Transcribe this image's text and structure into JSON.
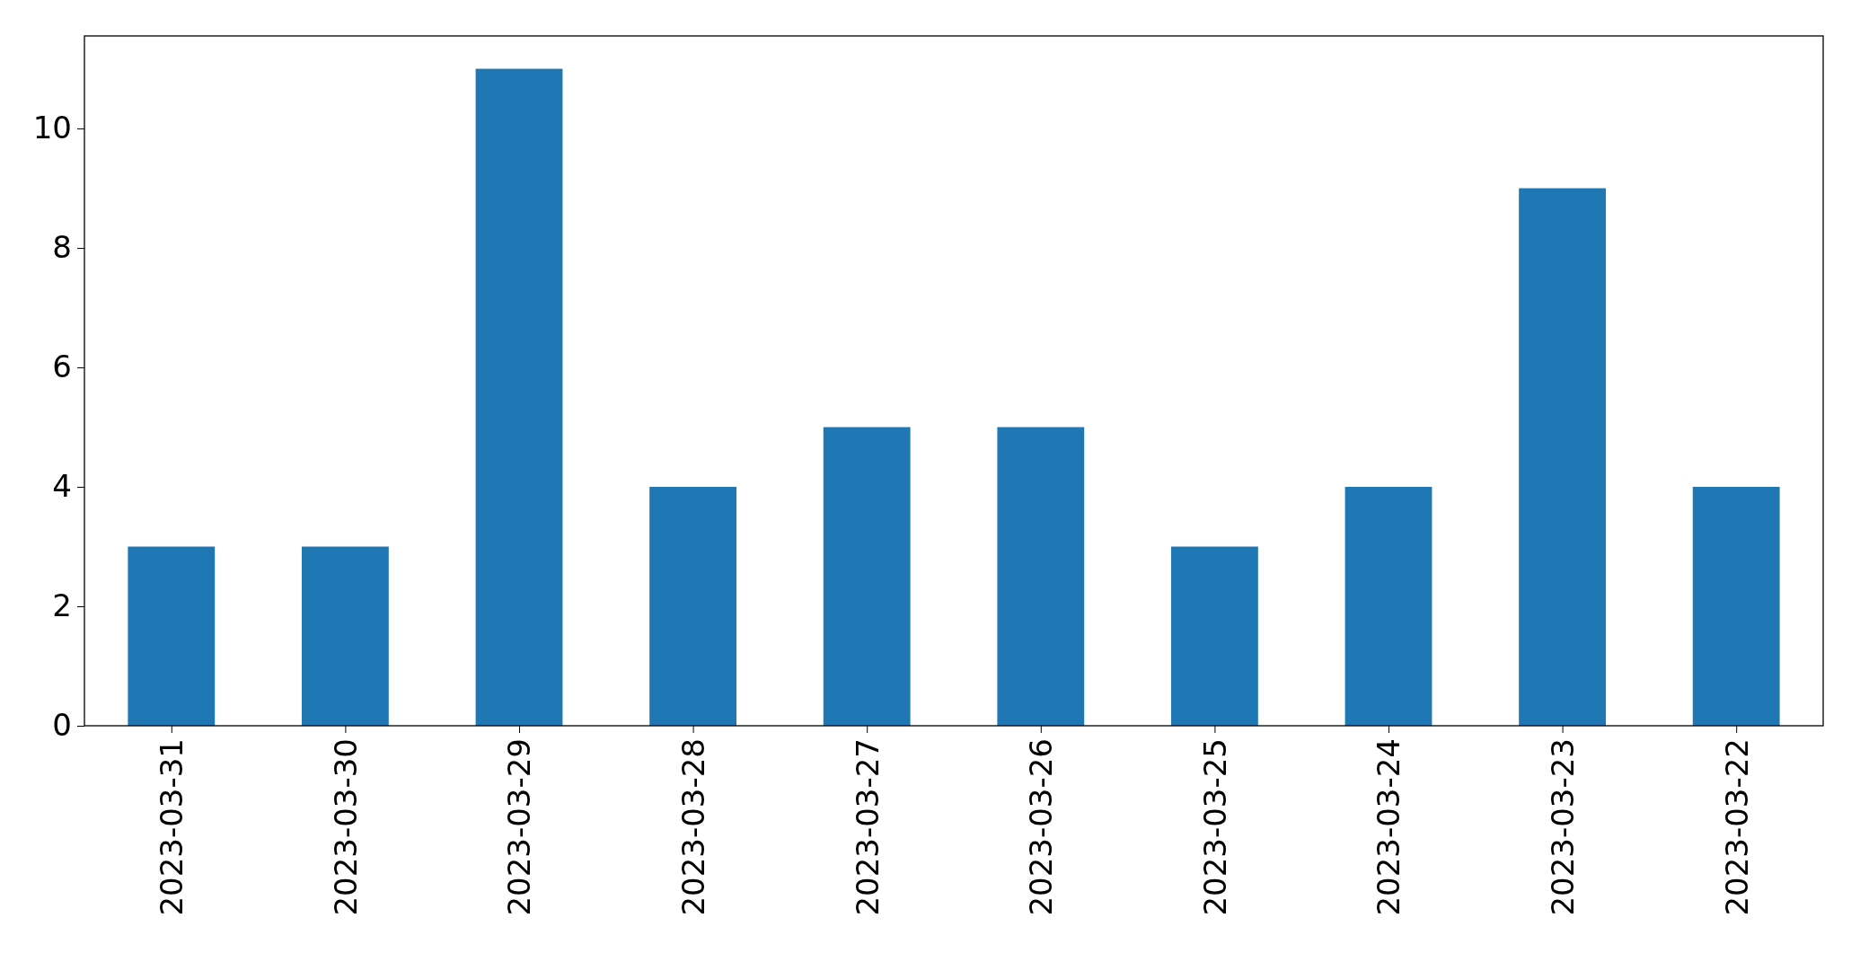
{
  "chart_data": {
    "type": "bar",
    "categories": [
      "2023-03-31",
      "2023-03-30",
      "2023-03-29",
      "2023-03-28",
      "2023-03-27",
      "2023-03-26",
      "2023-03-25",
      "2023-03-24",
      "2023-03-23",
      "2023-03-22"
    ],
    "values": [
      3,
      3,
      11,
      4,
      5,
      5,
      3,
      4,
      9,
      4
    ],
    "color": "#1f77b4",
    "ylim": [
      0,
      11.55
    ],
    "yticks": [
      0,
      2,
      4,
      6,
      8,
      10
    ]
  }
}
